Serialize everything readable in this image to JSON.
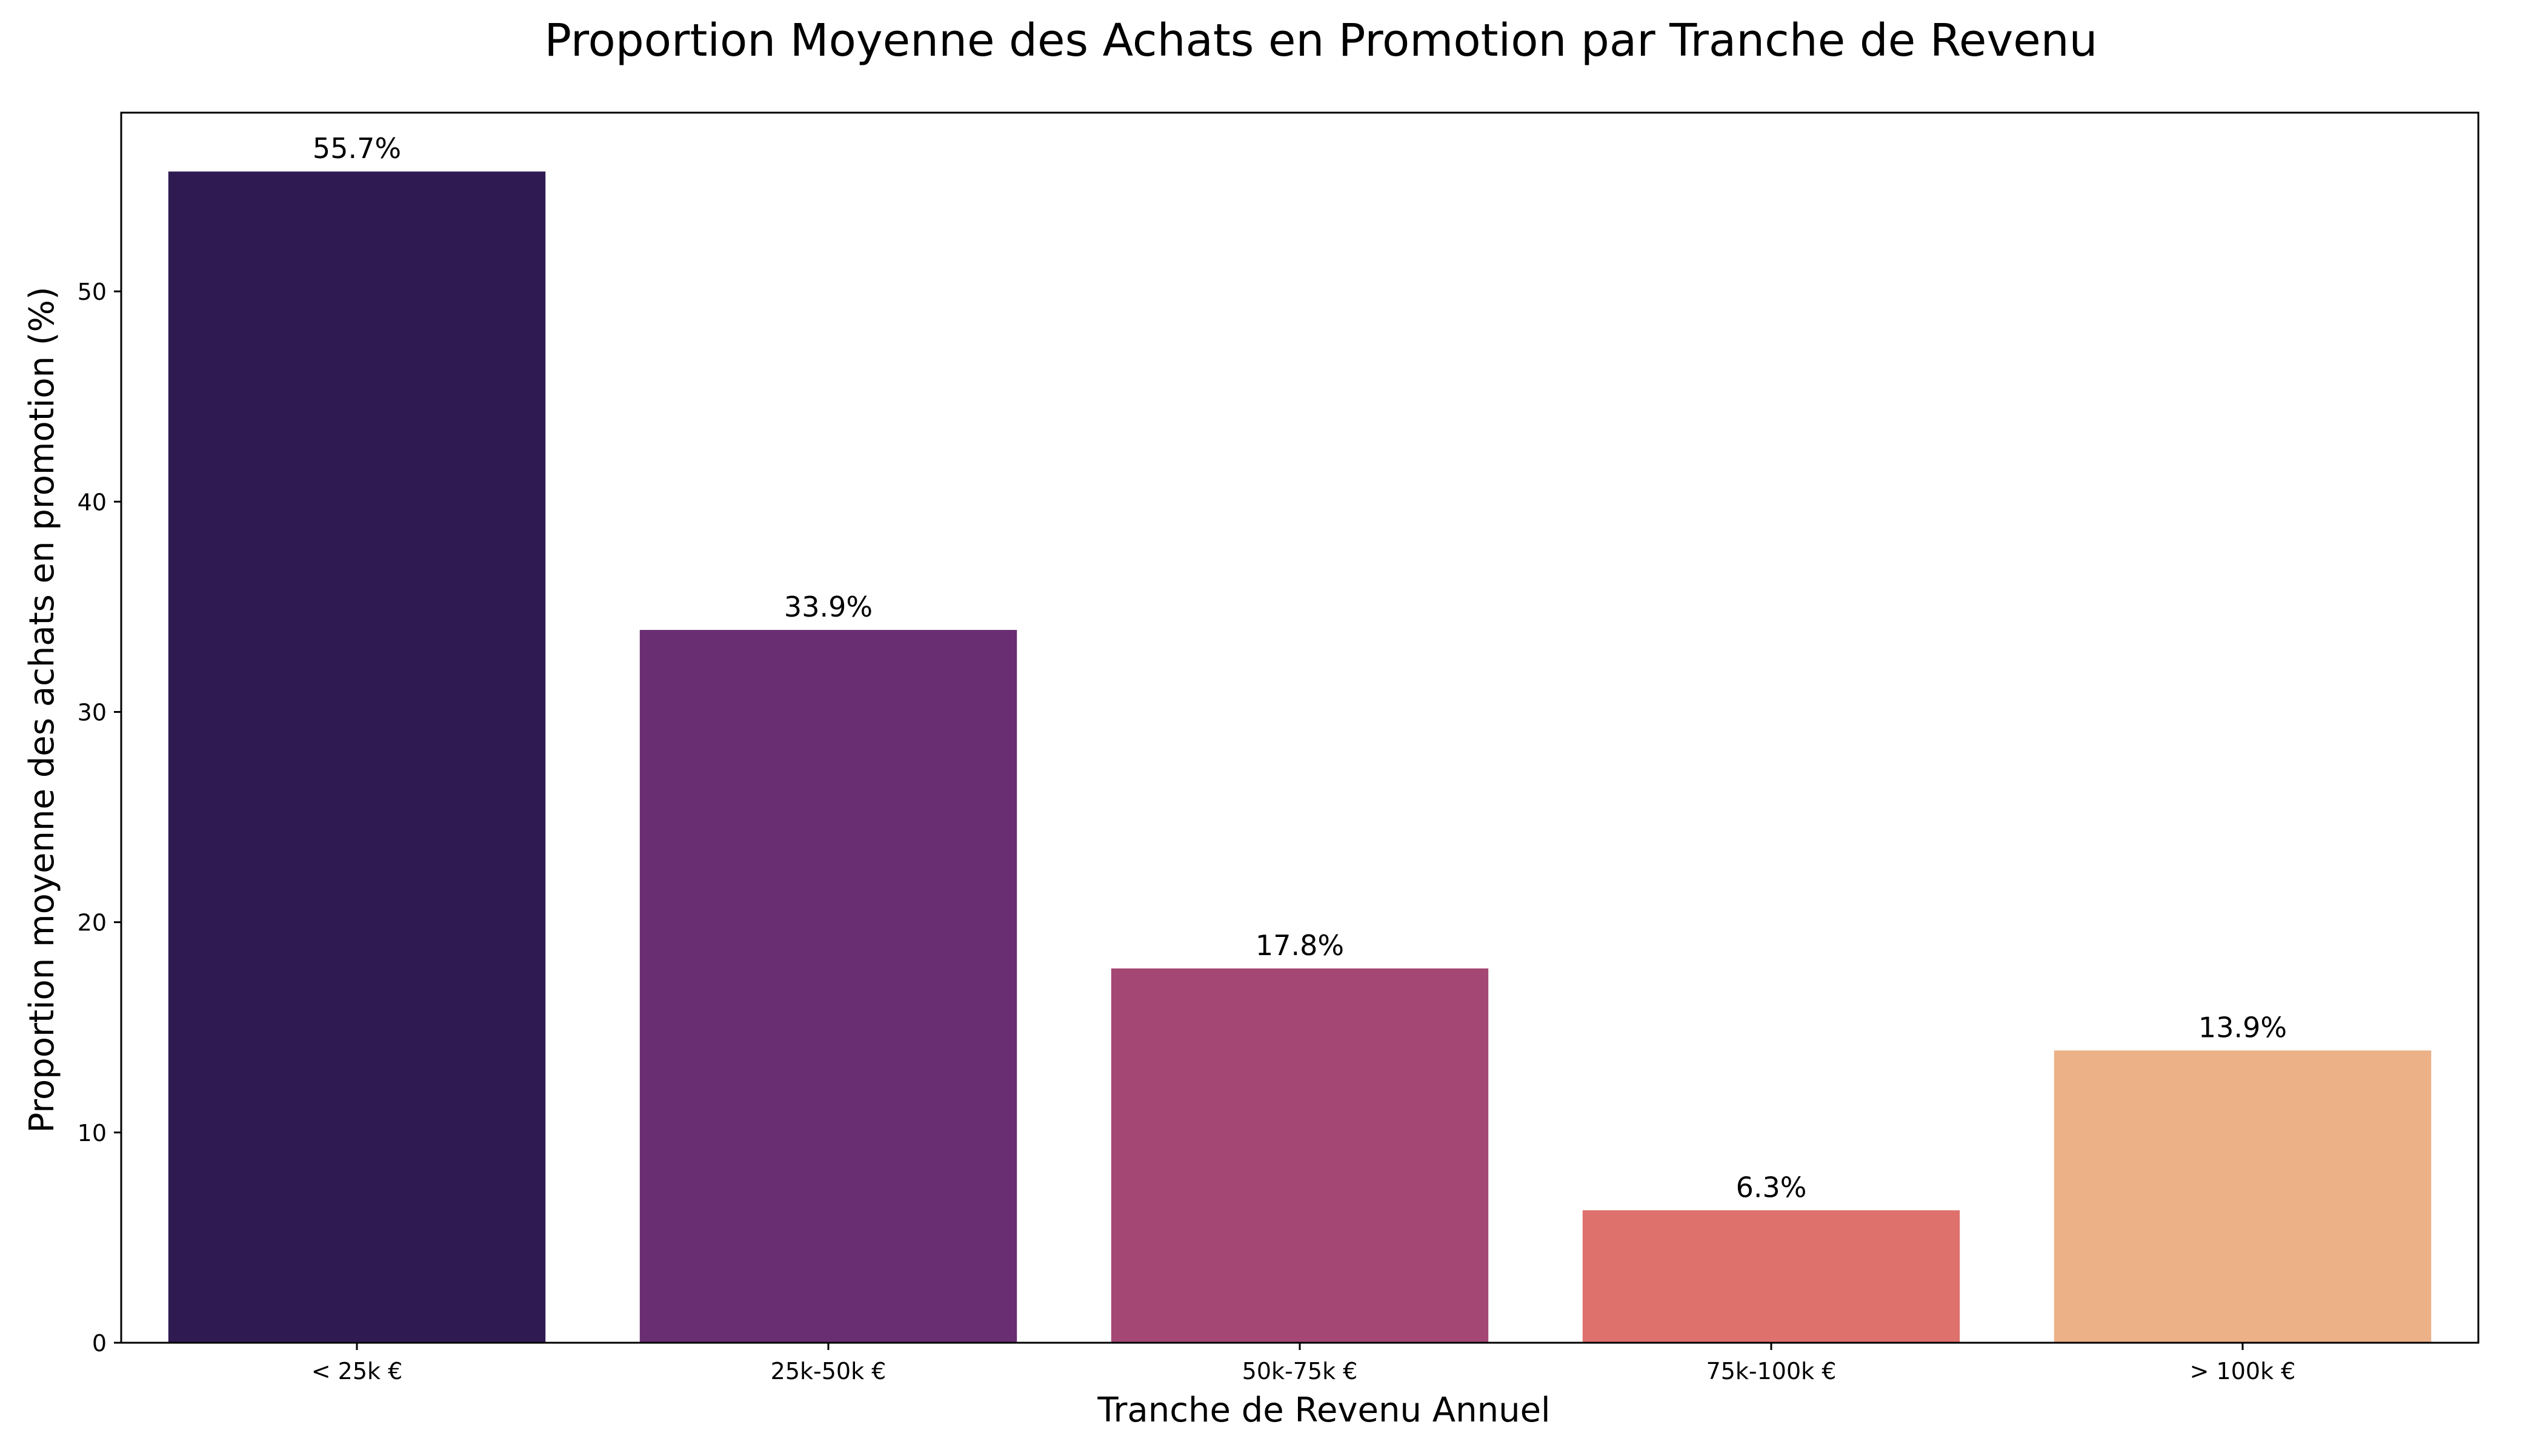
{
  "chart_data": {
    "type": "bar",
    "title": "Proportion Moyenne des Achats en Promotion par Tranche de Revenu",
    "xlabel": "Tranche de Revenu Annuel",
    "ylabel": "Proportion moyenne des achats en promotion (%)",
    "categories": [
      "< 25k €",
      "25k-50k €",
      "50k-75k €",
      "75k-100k €",
      "> 100k €"
    ],
    "values": [
      55.7,
      33.9,
      17.8,
      6.3,
      13.9
    ],
    "value_labels": [
      "55.7%",
      "33.9%",
      "17.8%",
      "6.3%",
      "13.9%"
    ],
    "colors": [
      "#2f1b52",
      "#692d71",
      "#a44774",
      "#de716c",
      "#edb187"
    ],
    "ylim": [
      0,
      58.5
    ],
    "yticks": [
      0,
      10,
      20,
      30,
      40,
      50
    ],
    "ytick_labels": [
      "0",
      "10",
      "20",
      "30",
      "40",
      "50"
    ],
    "grid": false,
    "legend": "none"
  }
}
